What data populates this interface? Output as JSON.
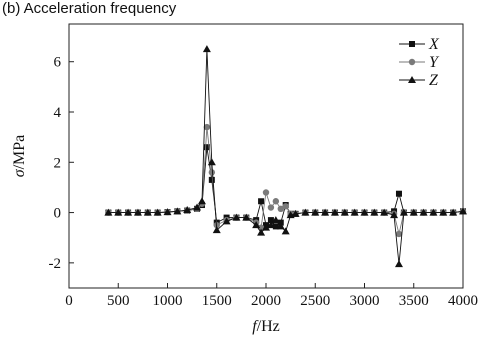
{
  "chart_data": {
    "type": "line",
    "title": "(b) Acceleration frequency",
    "xlabel_symbol": "f",
    "xlabel_unit": "/Hz",
    "ylabel_symbol": "σ",
    "ylabel_unit": "/MPa",
    "xlim": [
      0,
      4000
    ],
    "ylim": [
      -3,
      7.5
    ],
    "xticks": [
      0,
      500,
      1000,
      1500,
      2000,
      2500,
      3000,
      3500,
      4000
    ],
    "xtick_labels": [
      "0",
      "500",
      "1000",
      "1500",
      "2000",
      "2500",
      "3000",
      "3500",
      "4000"
    ],
    "yticks": [
      -2,
      0,
      2,
      4,
      6
    ],
    "ytick_labels": [
      "-2",
      "0",
      "2",
      "4",
      "6"
    ],
    "grid": false,
    "legend_position": "top-right",
    "x": [
      400,
      500,
      600,
      700,
      800,
      900,
      1000,
      1100,
      1200,
      1300,
      1350,
      1400,
      1450,
      1500,
      1600,
      1700,
      1800,
      1900,
      1950,
      2000,
      2050,
      2100,
      2150,
      2200,
      2250,
      2300,
      2400,
      2500,
      2600,
      2700,
      2800,
      2900,
      3000,
      3100,
      3200,
      3300,
      3350,
      3400,
      3500,
      3600,
      3700,
      3800,
      3900,
      4000
    ],
    "series": [
      {
        "name": "X",
        "marker": "square",
        "color": "#111111",
        "values": [
          0,
          0,
          0,
          0,
          0,
          0,
          0.02,
          0.05,
          0.08,
          0.15,
          0.3,
          2.6,
          1.3,
          -0.4,
          -0.2,
          -0.2,
          -0.2,
          -0.3,
          0.45,
          -0.5,
          -0.3,
          -0.55,
          -0.4,
          0.3,
          -0.05,
          -0.05,
          0,
          0,
          0,
          0,
          0,
          0,
          0,
          0,
          0,
          0.05,
          0.75,
          0,
          0,
          0,
          0,
          0,
          0,
          0.05
        ]
      },
      {
        "name": "Y",
        "marker": "circle",
        "color": "#7a7a7a",
        "values": [
          0,
          0,
          0,
          0,
          0,
          0,
          0.02,
          0.05,
          0.08,
          0.15,
          0.35,
          3.4,
          1.6,
          -0.5,
          -0.3,
          -0.2,
          -0.2,
          -0.4,
          -0.6,
          0.8,
          0.2,
          0.45,
          0.15,
          0.25,
          -0.05,
          -0.05,
          0,
          0,
          0,
          0,
          0,
          0,
          0,
          0,
          0,
          -0.05,
          -0.85,
          0,
          0,
          0,
          0,
          0,
          0,
          0.05
        ]
      },
      {
        "name": "Z",
        "marker": "triangle",
        "color": "#111111",
        "values": [
          0,
          0,
          0,
          0,
          0,
          0,
          0.02,
          0.05,
          0.1,
          0.2,
          0.45,
          6.5,
          2.0,
          -0.7,
          -0.35,
          -0.2,
          -0.2,
          -0.5,
          -0.8,
          -0.6,
          -0.5,
          -0.3,
          -0.55,
          -0.75,
          -0.1,
          -0.05,
          0,
          0,
          0,
          0,
          0,
          0,
          0,
          0,
          0,
          -0.1,
          -2.05,
          0,
          0,
          0,
          0,
          0,
          0,
          0.05
        ]
      }
    ]
  }
}
